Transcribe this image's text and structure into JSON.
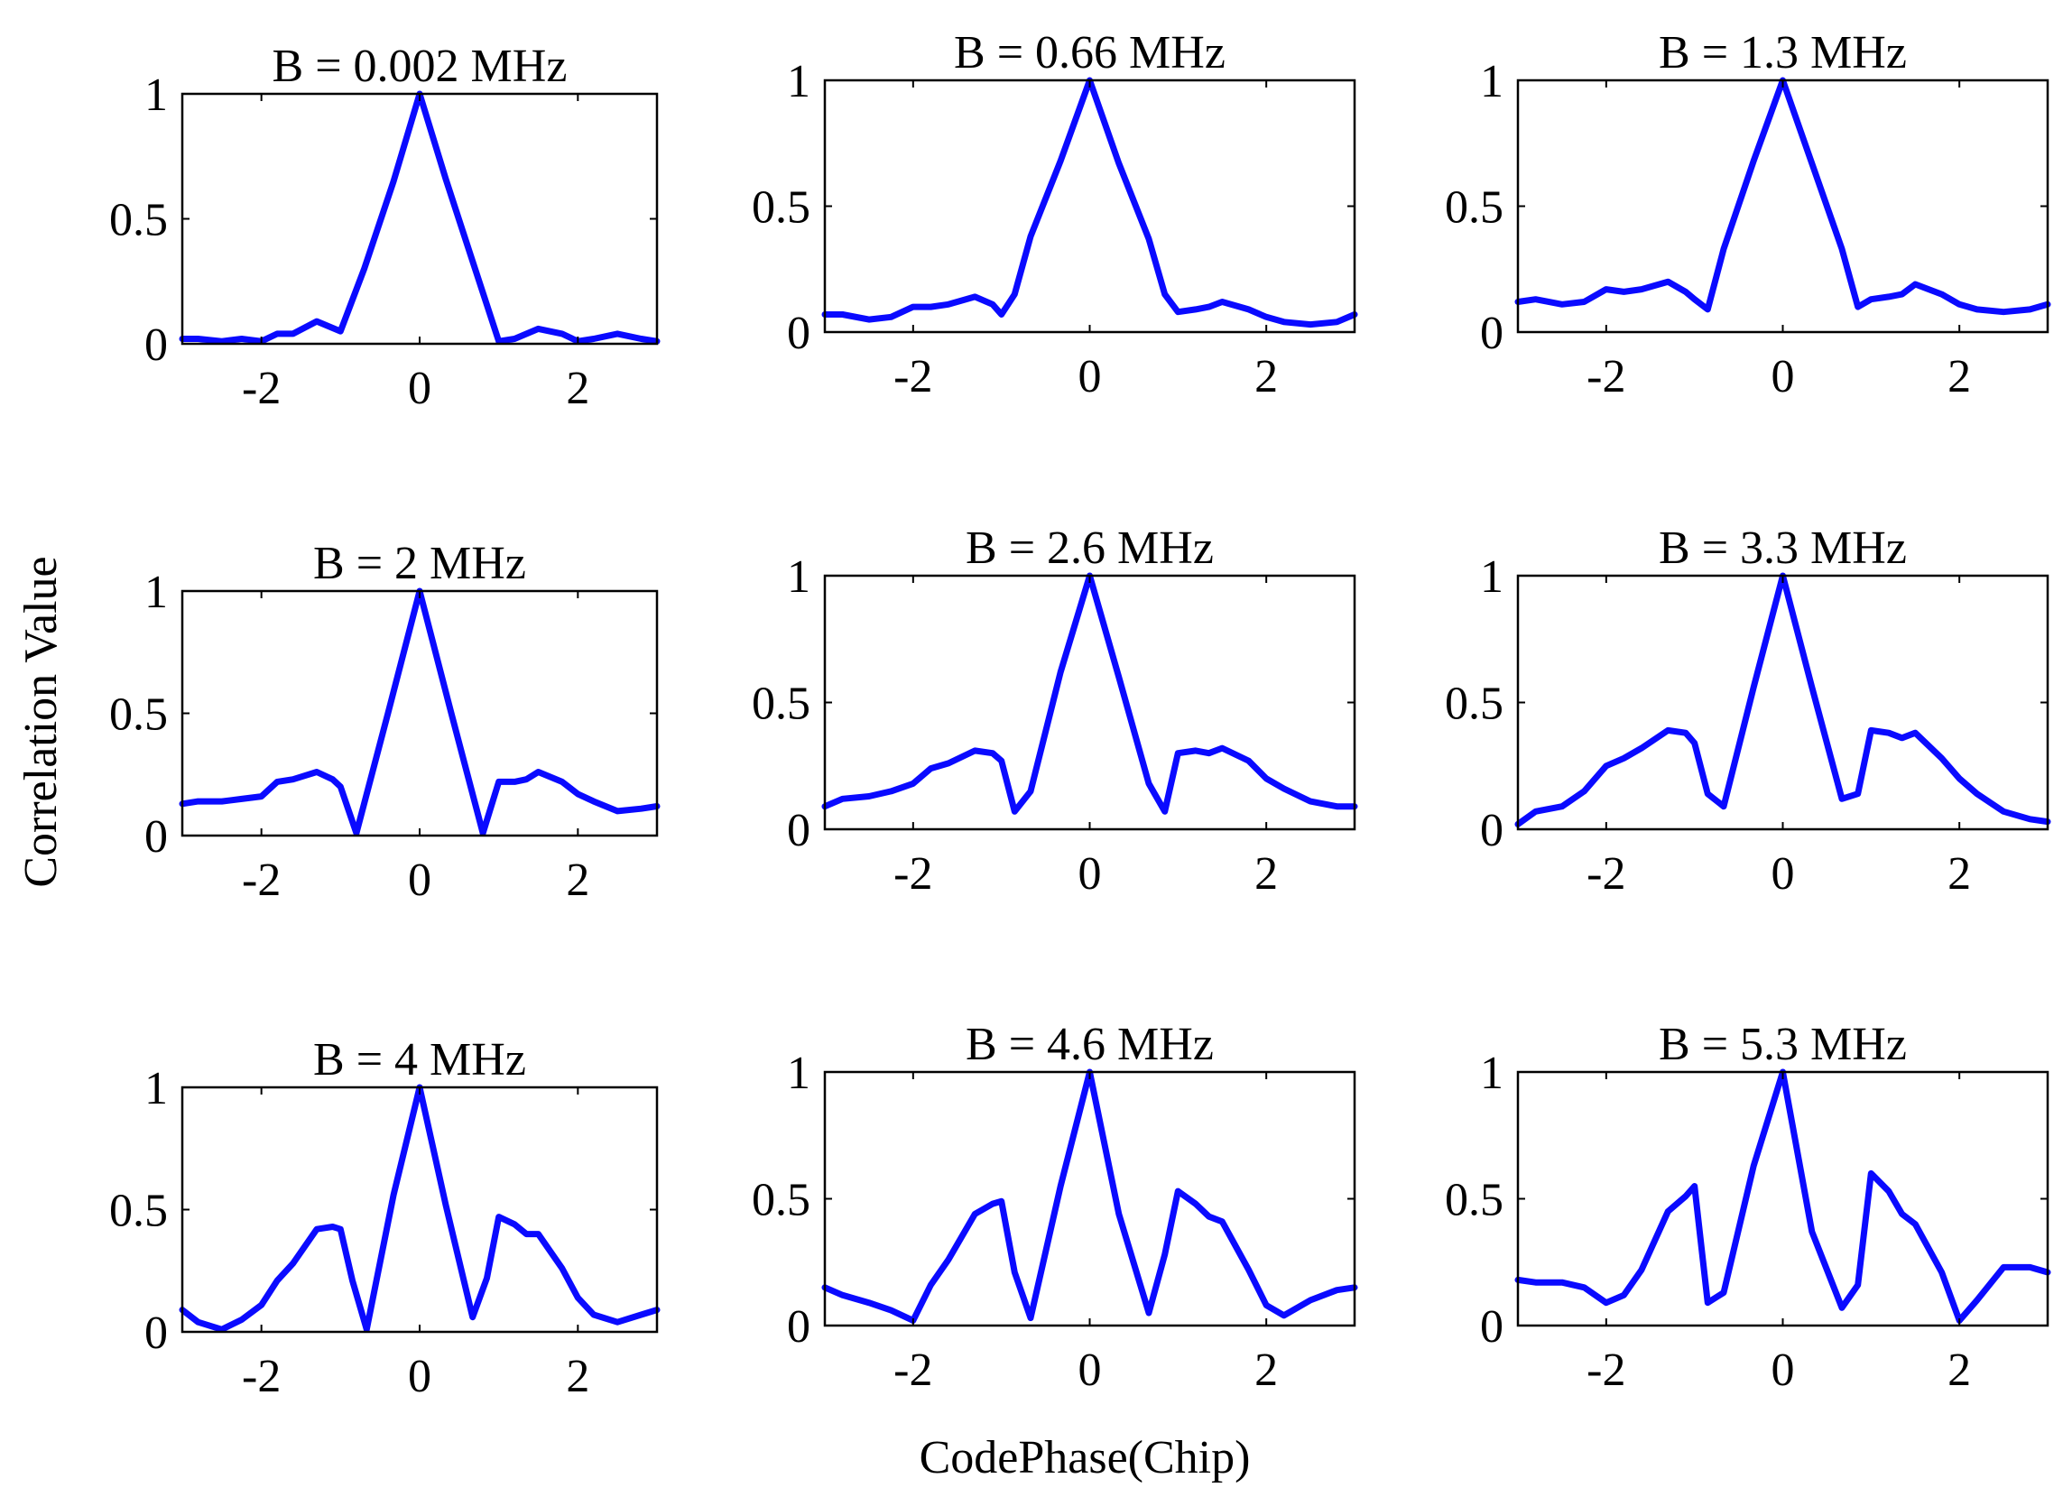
{
  "figure": {
    "ylabel": "Correlation Value",
    "xlabel": "CodePhase(Chip)",
    "line_color": "#0a0aff"
  },
  "chart_data": [
    {
      "type": "line",
      "title": "B = 0.002 MHz",
      "xlim": [
        -3,
        3
      ],
      "ylim": [
        0,
        1
      ],
      "xticks": [
        -2,
        0,
        2
      ],
      "xtick_labels": [
        "-2",
        "0",
        "2"
      ],
      "yticks": [
        0,
        0.5,
        1
      ],
      "ytick_labels": [
        "0",
        "0.5",
        "1"
      ],
      "x": [
        -3,
        -2.8,
        -2.5,
        -2.25,
        -2,
        -1.8,
        -1.6,
        -1.3,
        -1,
        -0.7,
        -0.33,
        0,
        0.33,
        0.67,
        1,
        1.2,
        1.5,
        1.8,
        2,
        2.2,
        2.5,
        2.8,
        3
      ],
      "y": [
        0.02,
        0.02,
        0.01,
        0.02,
        0.01,
        0.04,
        0.04,
        0.09,
        0.05,
        0.3,
        0.65,
        1.0,
        0.66,
        0.33,
        0.01,
        0.02,
        0.06,
        0.04,
        0.01,
        0.02,
        0.04,
        0.02,
        0.01
      ]
    },
    {
      "type": "line",
      "title": "B = 0.66 MHz",
      "xlim": [
        -3,
        3
      ],
      "ylim": [
        0,
        1
      ],
      "xticks": [
        -2,
        0,
        2
      ],
      "xtick_labels": [
        "-2",
        "0",
        "2"
      ],
      "yticks": [
        0,
        0.5,
        1
      ],
      "ytick_labels": [
        "0",
        "0.5",
        "1"
      ],
      "x": [
        -3,
        -2.8,
        -2.5,
        -2.25,
        -2,
        -1.8,
        -1.6,
        -1.3,
        -1.1,
        -1,
        -0.85,
        -0.67,
        -0.33,
        0,
        0.33,
        0.67,
        0.85,
        1,
        1.2,
        1.35,
        1.5,
        1.8,
        2,
        2.2,
        2.5,
        2.8,
        3
      ],
      "y": [
        0.07,
        0.07,
        0.05,
        0.06,
        0.1,
        0.1,
        0.11,
        0.14,
        0.11,
        0.07,
        0.15,
        0.38,
        0.68,
        1.0,
        0.67,
        0.37,
        0.15,
        0.08,
        0.09,
        0.1,
        0.12,
        0.09,
        0.06,
        0.04,
        0.03,
        0.04,
        0.07
      ]
    },
    {
      "type": "line",
      "title": "B = 1.3 MHz",
      "xlim": [
        -3,
        3
      ],
      "ylim": [
        0,
        1
      ],
      "xticks": [
        -2,
        0,
        2
      ],
      "xtick_labels": [
        "-2",
        "0",
        "2"
      ],
      "yticks": [
        0,
        0.5,
        1
      ],
      "ytick_labels": [
        "0",
        "0.5",
        "1"
      ],
      "x": [
        -3,
        -2.8,
        -2.5,
        -2.25,
        -2,
        -1.8,
        -1.6,
        -1.3,
        -1.1,
        -1,
        -0.85,
        -0.67,
        -0.33,
        0,
        0.33,
        0.67,
        0.85,
        1,
        1.2,
        1.35,
        1.5,
        1.8,
        2,
        2.2,
        2.5,
        2.8,
        3
      ],
      "y": [
        0.12,
        0.13,
        0.11,
        0.12,
        0.17,
        0.16,
        0.17,
        0.2,
        0.16,
        0.13,
        0.09,
        0.33,
        0.68,
        1.0,
        0.67,
        0.33,
        0.1,
        0.13,
        0.14,
        0.15,
        0.19,
        0.15,
        0.11,
        0.09,
        0.08,
        0.09,
        0.11
      ]
    },
    {
      "type": "line",
      "title": "B = 2 MHz",
      "xlim": [
        -3,
        3
      ],
      "ylim": [
        0,
        1
      ],
      "xticks": [
        -2,
        0,
        2
      ],
      "xtick_labels": [
        "-2",
        "0",
        "2"
      ],
      "yticks": [
        0,
        0.5,
        1
      ],
      "ytick_labels": [
        "0",
        "0.5",
        "1"
      ],
      "x": [
        -3,
        -2.8,
        -2.5,
        -2.25,
        -2,
        -1.8,
        -1.6,
        -1.3,
        -1.1,
        -1,
        -0.8,
        -0.4,
        0,
        0.4,
        0.8,
        1,
        1.2,
        1.35,
        1.5,
        1.8,
        2,
        2.2,
        2.5,
        2.8,
        3
      ],
      "y": [
        0.13,
        0.14,
        0.14,
        0.15,
        0.16,
        0.22,
        0.23,
        0.26,
        0.23,
        0.2,
        0.01,
        0.5,
        1.0,
        0.5,
        0.01,
        0.22,
        0.22,
        0.23,
        0.26,
        0.22,
        0.17,
        0.14,
        0.1,
        0.11,
        0.12
      ]
    },
    {
      "type": "line",
      "title": "B = 2.6 MHz",
      "xlim": [
        -3,
        3
      ],
      "ylim": [
        0,
        1
      ],
      "xticks": [
        -2,
        0,
        2
      ],
      "xtick_labels": [
        "-2",
        "0",
        "2"
      ],
      "yticks": [
        0,
        0.5,
        1
      ],
      "ytick_labels": [
        "0",
        "0.5",
        "1"
      ],
      "x": [
        -3,
        -2.8,
        -2.5,
        -2.25,
        -2,
        -1.8,
        -1.6,
        -1.3,
        -1.1,
        -1,
        -0.85,
        -0.67,
        -0.33,
        0,
        0.33,
        0.67,
        0.85,
        1,
        1.2,
        1.35,
        1.5,
        1.8,
        2,
        2.2,
        2.5,
        2.8,
        3
      ],
      "y": [
        0.09,
        0.12,
        0.13,
        0.15,
        0.18,
        0.24,
        0.26,
        0.31,
        0.3,
        0.27,
        0.07,
        0.15,
        0.62,
        1.0,
        0.6,
        0.18,
        0.07,
        0.3,
        0.31,
        0.3,
        0.32,
        0.27,
        0.2,
        0.16,
        0.11,
        0.09,
        0.09
      ]
    },
    {
      "type": "line",
      "title": "B = 3.3 MHz",
      "xlim": [
        -3,
        3
      ],
      "ylim": [
        0,
        1
      ],
      "xticks": [
        -2,
        0,
        2
      ],
      "xtick_labels": [
        "-2",
        "0",
        "2"
      ],
      "yticks": [
        0,
        0.5,
        1
      ],
      "ytick_labels": [
        "0",
        "0.5",
        "1"
      ],
      "x": [
        -3,
        -2.8,
        -2.5,
        -2.25,
        -2,
        -1.8,
        -1.6,
        -1.3,
        -1.1,
        -1,
        -0.85,
        -0.67,
        -0.33,
        0,
        0.33,
        0.67,
        0.85,
        1,
        1.2,
        1.35,
        1.5,
        1.8,
        2,
        2.2,
        2.5,
        2.8,
        3
      ],
      "y": [
        0.02,
        0.07,
        0.09,
        0.15,
        0.25,
        0.28,
        0.32,
        0.39,
        0.38,
        0.34,
        0.14,
        0.09,
        0.56,
        1.0,
        0.56,
        0.12,
        0.14,
        0.39,
        0.38,
        0.36,
        0.38,
        0.28,
        0.2,
        0.14,
        0.07,
        0.04,
        0.03
      ]
    },
    {
      "type": "line",
      "title": "B = 4 MHz",
      "xlim": [
        -3,
        3
      ],
      "ylim": [
        0,
        1
      ],
      "xticks": [
        -2,
        0,
        2
      ],
      "xtick_labels": [
        "-2",
        "0",
        "2"
      ],
      "yticks": [
        0,
        0.5,
        1
      ],
      "ytick_labels": [
        "0",
        "0.5",
        "1"
      ],
      "x": [
        -3,
        -2.8,
        -2.5,
        -2.25,
        -2,
        -1.8,
        -1.6,
        -1.3,
        -1.1,
        -1,
        -0.85,
        -0.67,
        -0.33,
        0,
        0.33,
        0.67,
        0.85,
        1,
        1.2,
        1.35,
        1.5,
        1.8,
        2,
        2.2,
        2.5,
        2.8,
        3
      ],
      "y": [
        0.09,
        0.04,
        0.01,
        0.05,
        0.11,
        0.21,
        0.28,
        0.42,
        0.43,
        0.42,
        0.21,
        0.01,
        0.56,
        1.0,
        0.52,
        0.06,
        0.22,
        0.47,
        0.44,
        0.4,
        0.4,
        0.26,
        0.14,
        0.07,
        0.04,
        0.07,
        0.09
      ]
    },
    {
      "type": "line",
      "title": "B = 4.6 MHz",
      "xlim": [
        -3,
        3
      ],
      "ylim": [
        0,
        1
      ],
      "xticks": [
        -2,
        0,
        2
      ],
      "xtick_labels": [
        "-2",
        "0",
        "2"
      ],
      "yticks": [
        0,
        0.5,
        1
      ],
      "ytick_labels": [
        "0",
        "0.5",
        "1"
      ],
      "x": [
        -3,
        -2.8,
        -2.5,
        -2.25,
        -2,
        -1.8,
        -1.6,
        -1.3,
        -1.1,
        -1,
        -0.85,
        -0.67,
        -0.33,
        0,
        0.33,
        0.67,
        0.85,
        1,
        1.2,
        1.35,
        1.5,
        1.8,
        2,
        2.2,
        2.5,
        2.8,
        3
      ],
      "y": [
        0.15,
        0.12,
        0.09,
        0.06,
        0.02,
        0.16,
        0.26,
        0.44,
        0.48,
        0.49,
        0.21,
        0.03,
        0.55,
        1.0,
        0.44,
        0.05,
        0.28,
        0.53,
        0.48,
        0.43,
        0.41,
        0.22,
        0.08,
        0.04,
        0.1,
        0.14,
        0.15
      ]
    },
    {
      "type": "line",
      "title": "B = 5.3 MHz",
      "xlim": [
        -3,
        3
      ],
      "ylim": [
        0,
        1
      ],
      "xticks": [
        -2,
        0,
        2
      ],
      "xtick_labels": [
        "-2",
        "0",
        "2"
      ],
      "yticks": [
        0,
        0.5,
        1
      ],
      "ytick_labels": [
        "0",
        "0.5",
        "1"
      ],
      "x": [
        -3,
        -2.8,
        -2.5,
        -2.25,
        -2,
        -1.8,
        -1.6,
        -1.3,
        -1.1,
        -1,
        -0.85,
        -0.67,
        -0.33,
        0,
        0.33,
        0.67,
        0.85,
        1,
        1.2,
        1.35,
        1.5,
        1.8,
        2,
        2.2,
        2.5,
        2.8,
        3
      ],
      "y": [
        0.18,
        0.17,
        0.17,
        0.15,
        0.09,
        0.12,
        0.22,
        0.45,
        0.51,
        0.55,
        0.09,
        0.13,
        0.63,
        1.0,
        0.37,
        0.07,
        0.16,
        0.6,
        0.53,
        0.44,
        0.4,
        0.21,
        0.02,
        0.1,
        0.23,
        0.23,
        0.21
      ]
    }
  ]
}
